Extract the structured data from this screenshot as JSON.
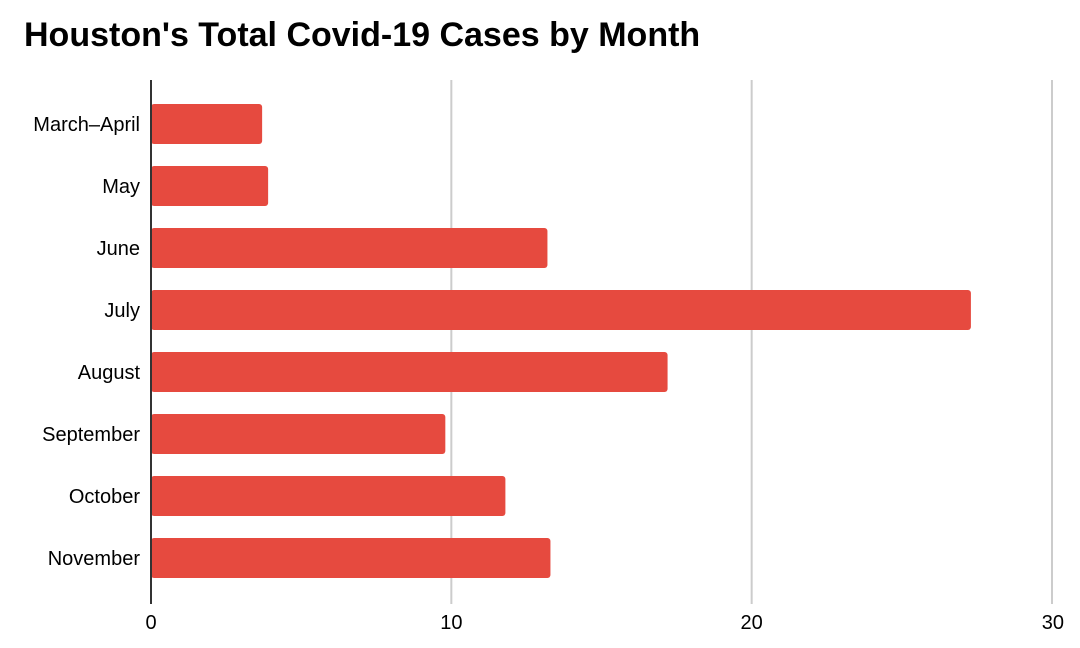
{
  "chart_data": {
    "type": "bar",
    "orientation": "horizontal",
    "title": "Houston's Total Covid-19 Cases by Month",
    "xlabel": "",
    "ylabel": "",
    "categories": [
      "March–April",
      "May",
      "June",
      "July",
      "August",
      "September",
      "October",
      "November"
    ],
    "values": [
      3.7,
      3.9,
      13.2,
      27.3,
      17.2,
      9.8,
      11.8,
      13.3
    ],
    "xlim": [
      0,
      30
    ],
    "x_ticks": [
      0,
      10,
      20,
      30
    ],
    "grid": true,
    "legend": "none",
    "bar_color": "#e64a3f",
    "grid_color": "#cccccc",
    "axis_color": "#333333"
  }
}
